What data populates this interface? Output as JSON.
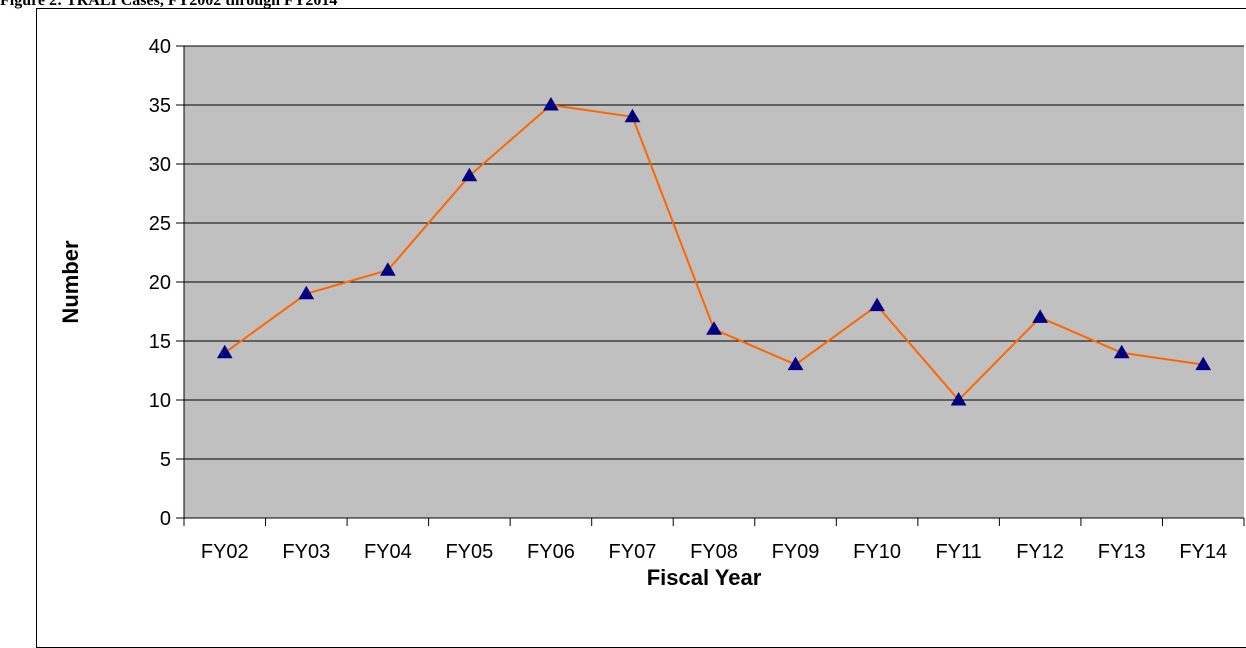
{
  "figure_title": "Figure 2: TRALI Cases, FY2002 through FY2014",
  "chart_data": {
    "type": "line",
    "title": "Figure 2: TRALI Cases, FY2002 through FY2014",
    "xlabel": "Fiscal Year",
    "ylabel": "Number",
    "categories": [
      "FY02",
      "FY03",
      "FY04",
      "FY05",
      "FY06",
      "FY07",
      "FY08",
      "FY09",
      "FY10",
      "FY11",
      "FY12",
      "FY13",
      "FY14"
    ],
    "series": [
      {
        "values": [
          14,
          19,
          21,
          29,
          35,
          34,
          16,
          13,
          18,
          10,
          17,
          14,
          13
        ],
        "line_color": "#ff6600",
        "marker": "triangle",
        "marker_color": "#000080"
      }
    ],
    "ylim": [
      0,
      40
    ],
    "yticks": [
      0,
      5,
      10,
      15,
      20,
      25,
      30,
      35,
      40
    ],
    "grid": true,
    "plot_background": "#c0c0c0",
    "legend": "none"
  }
}
